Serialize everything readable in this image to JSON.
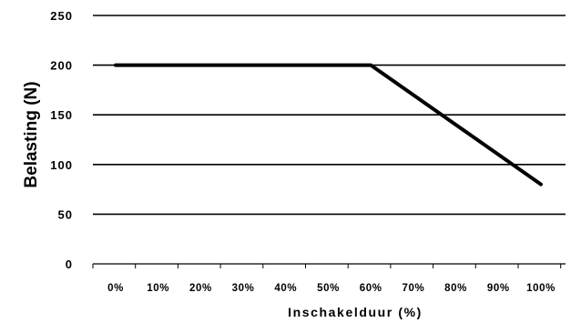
{
  "chart_data": {
    "type": "line",
    "title": "",
    "xlabel": "Inschakelduur (%)",
    "ylabel": "Belasting (N)",
    "x_ticks": [
      "0%",
      "10%",
      "20%",
      "30%",
      "40%",
      "50%",
      "60%",
      "70%",
      "80%",
      "90%",
      "100%"
    ],
    "y_ticks": [
      "0",
      "50",
      "100",
      "150",
      "200",
      "250"
    ],
    "ylim": [
      0,
      250
    ],
    "xlim": [
      0,
      100
    ],
    "grid": true,
    "series": [
      {
        "x": [
          0,
          60,
          70,
          100
        ],
        "y": [
          200,
          200,
          170,
          80
        ],
        "color": "#000000"
      }
    ]
  }
}
